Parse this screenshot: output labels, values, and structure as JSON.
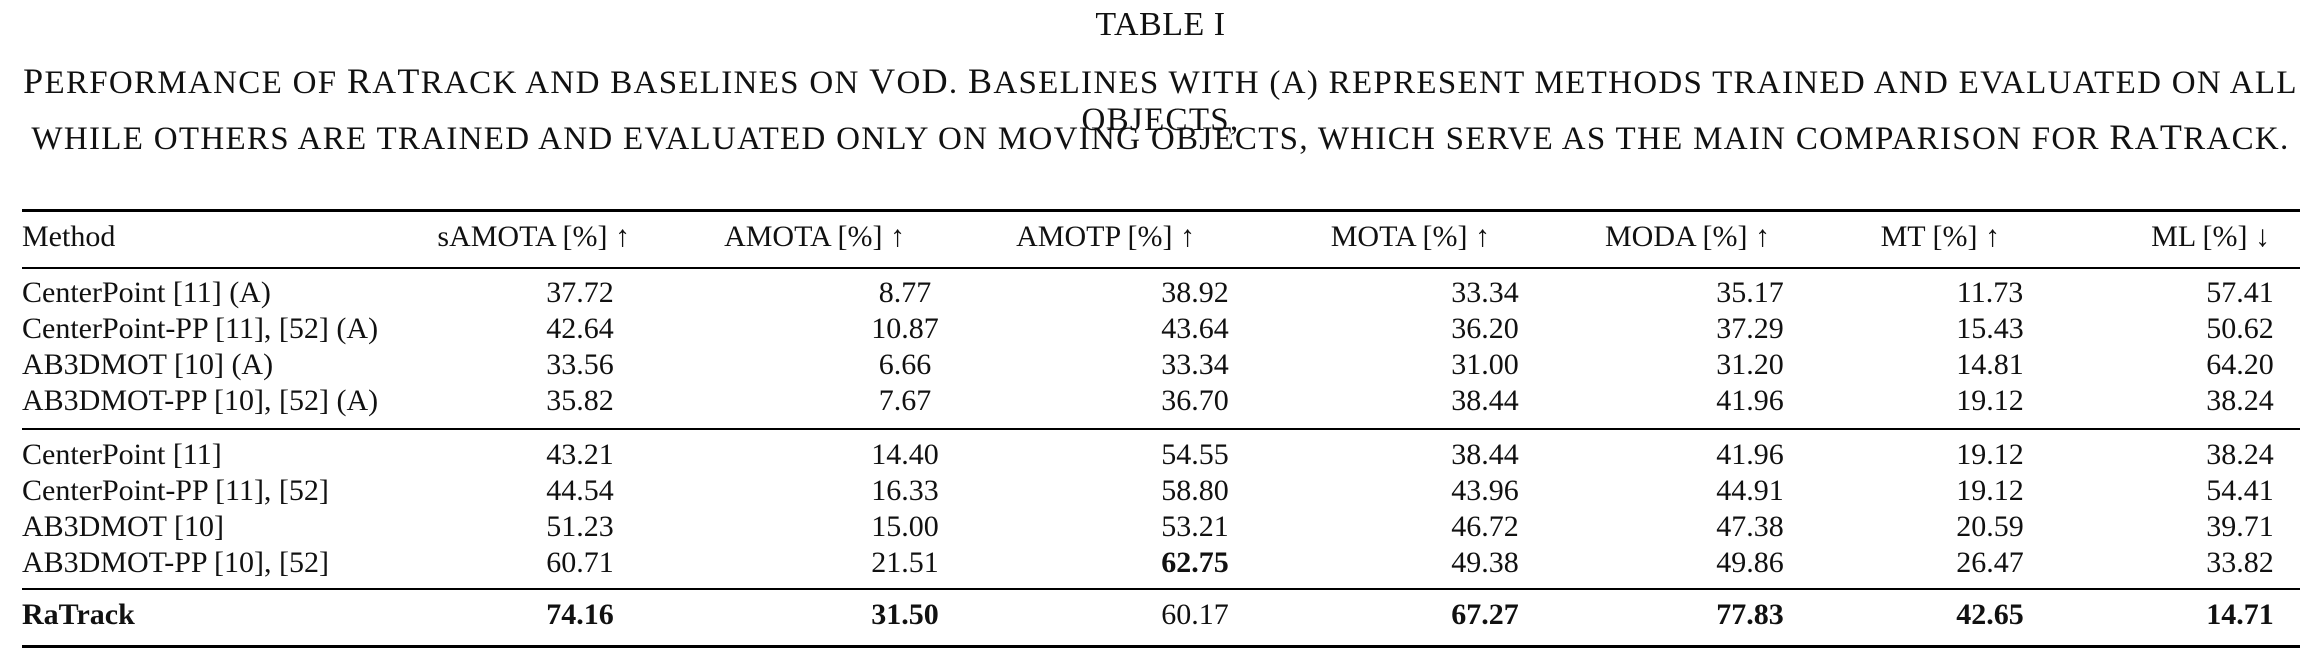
{
  "table": {
    "number": "TABLE I",
    "caption_line_1": [
      {
        "t": "P",
        "big": true
      },
      {
        "t": "ERFORMANCE OF "
      },
      {
        "t": "R",
        "big": true
      },
      {
        "t": "A"
      },
      {
        "t": "T",
        "big": true
      },
      {
        "t": "RACK AND BASELINES ON "
      },
      {
        "t": "V",
        "big": true
      },
      {
        "t": "O"
      },
      {
        "t": "D",
        "big": true
      },
      {
        "t": ". "
      },
      {
        "t": "B",
        "big": true
      },
      {
        "t": "ASELINES WITH (A) REPRESENT METHODS TRAINED AND EVALUATED ON ALL OBJECTS,"
      }
    ],
    "caption_line_2": [
      {
        "t": "WHILE OTHERS ARE TRAINED AND EVALUATED ONLY ON MOVING OBJECTS, WHICH SERVE AS THE MAIN COMPARISON FOR "
      },
      {
        "t": "R",
        "big": true
      },
      {
        "t": "A"
      },
      {
        "t": "T",
        "big": true
      },
      {
        "t": "RACK."
      }
    ],
    "headers": [
      "Method",
      "sAMOTA [%] ↑",
      "AMOTA [%] ↑",
      "AMOTP [%] ↑",
      "MOTA [%] ↑",
      "MODA [%] ↑",
      "MT [%] ↑",
      "ML [%] ↓"
    ],
    "groups": [
      [
        {
          "cells": [
            "CenterPoint [11] (A)",
            "37.72",
            "8.77",
            "38.92",
            "33.34",
            "35.17",
            "11.73",
            "57.41"
          ],
          "bold": []
        },
        {
          "cells": [
            "CenterPoint-PP [11], [52] (A)",
            "42.64",
            "10.87",
            "43.64",
            "36.20",
            "37.29",
            "15.43",
            "50.62"
          ],
          "bold": []
        },
        {
          "cells": [
            "AB3DMOT [10] (A)",
            "33.56",
            "6.66",
            "33.34",
            "31.00",
            "31.20",
            "14.81",
            "64.20"
          ],
          "bold": []
        },
        {
          "cells": [
            "AB3DMOT-PP [10], [52] (A)",
            "35.82",
            "7.67",
            "36.70",
            "38.44",
            "41.96",
            "19.12",
            "38.24"
          ],
          "bold": []
        }
      ],
      [
        {
          "cells": [
            "CenterPoint [11]",
            "43.21",
            "14.40",
            "54.55",
            "38.44",
            "41.96",
            "19.12",
            "38.24"
          ],
          "bold": []
        },
        {
          "cells": [
            "CenterPoint-PP [11], [52]",
            "44.54",
            "16.33",
            "58.80",
            "43.96",
            "44.91",
            "19.12",
            "54.41"
          ],
          "bold": []
        },
        {
          "cells": [
            "AB3DMOT [10]",
            "51.23",
            "15.00",
            "53.21",
            "46.72",
            "47.38",
            "20.59",
            "39.71"
          ],
          "bold": []
        },
        {
          "cells": [
            "AB3DMOT-PP [10], [52]",
            "60.71",
            "21.51",
            "62.75",
            "49.38",
            "49.86",
            "26.47",
            "33.82"
          ],
          "bold": [
            3
          ]
        }
      ],
      [
        {
          "cells": [
            "RaTrack",
            "74.16",
            "31.50",
            "60.17",
            "67.27",
            "77.83",
            "42.65",
            "14.71"
          ],
          "bold": [
            0,
            1,
            2,
            4,
            5,
            6,
            7
          ]
        }
      ]
    ]
  }
}
